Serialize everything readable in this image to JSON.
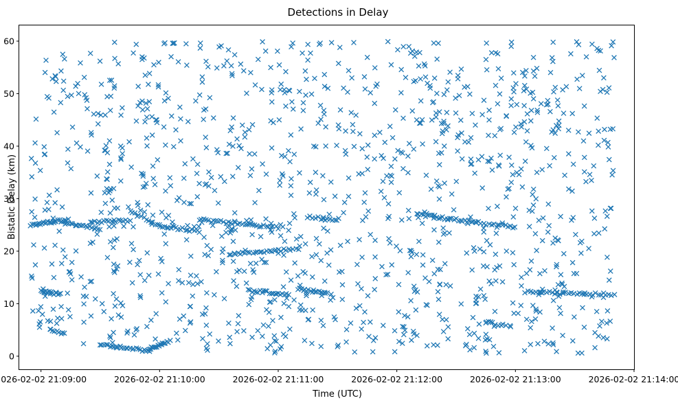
{
  "chart_data": {
    "type": "scatter",
    "title": "Detections in Delay",
    "xlabel": "Time (UTC)",
    "ylabel": "Bistatic Delay (km)",
    "marker": "x",
    "marker_color": "#1f77b4",
    "grid": false,
    "legend": "none",
    "xlim": [
      "2026-02-02 21:08:49",
      "2026-02-02 21:14:00"
    ],
    "ylim": [
      -2.5,
      63
    ],
    "xticks": [
      "2026-02-02 21:09:00",
      "2026-02-02 21:10:00",
      "2026-02-02 21:11:00",
      "2026-02-02 21:12:00",
      "2026-02-02 21:13:00",
      "2026-02-02 21:14:00"
    ],
    "yticks": [
      "0",
      "10",
      "20",
      "30",
      "40",
      "50",
      "60"
    ],
    "x_start": "2026-02-02 21:08:55",
    "x_end": "2026-02-02 21:13:50",
    "random_y_range": [
      0.5,
      60
    ],
    "tracks": [
      {
        "x": [
          "2026-02-02 21:08:55",
          "2026-02-02 21:09:10"
        ],
        "y": [
          25,
          25.8
        ],
        "n": 22
      },
      {
        "x": [
          "2026-02-02 21:09:10",
          "2026-02-02 21:09:30"
        ],
        "y": [
          25.5,
          24.3
        ],
        "n": 20
      },
      {
        "x": [
          "2026-02-02 21:09:25",
          "2026-02-02 21:09:45"
        ],
        "y": [
          25.5,
          25.8
        ],
        "n": 18
      },
      {
        "x": [
          "2026-02-02 21:09:45",
          "2026-02-02 21:10:00"
        ],
        "y": [
          27.5,
          24.8
        ],
        "n": 14
      },
      {
        "x": [
          "2026-02-02 21:10:00",
          "2026-02-02 21:10:20"
        ],
        "y": [
          24.8,
          23.8
        ],
        "n": 18
      },
      {
        "x": [
          "2026-02-02 21:10:20",
          "2026-02-02 21:11:00"
        ],
        "y": [
          26,
          24.5
        ],
        "n": 34
      },
      {
        "x": [
          "2026-02-02 21:11:15",
          "2026-02-02 21:11:30"
        ],
        "y": [
          26.5,
          26
        ],
        "n": 12
      },
      {
        "x": [
          "2026-02-02 21:12:10",
          "2026-02-02 21:12:40"
        ],
        "y": [
          27,
          25.5
        ],
        "n": 28
      },
      {
        "x": [
          "2026-02-02 21:12:40",
          "2026-02-02 21:13:00"
        ],
        "y": [
          25.5,
          24.5
        ],
        "n": 16
      },
      {
        "x": [
          "2026-02-02 21:09:00",
          "2026-02-02 21:09:10"
        ],
        "y": [
          12.3,
          11.8
        ],
        "n": 16
      },
      {
        "x": [
          "2026-02-02 21:10:45",
          "2026-02-02 21:11:05"
        ],
        "y": [
          12.5,
          11.8
        ],
        "n": 22
      },
      {
        "x": [
          "2026-02-02 21:11:10",
          "2026-02-02 21:11:25"
        ],
        "y": [
          12.8,
          12
        ],
        "n": 18
      },
      {
        "x": [
          "2026-02-02 21:13:05",
          "2026-02-02 21:13:50"
        ],
        "y": [
          12.2,
          11.8
        ],
        "n": 34
      },
      {
        "x": [
          "2026-02-02 21:10:35",
          "2026-02-02 21:11:10"
        ],
        "y": [
          19.3,
          20.5
        ],
        "n": 30
      },
      {
        "x": [
          "2026-02-02 21:09:30",
          "2026-02-02 21:09:55"
        ],
        "y": [
          2.2,
          1.0
        ],
        "n": 26
      },
      {
        "x": [
          "2026-02-02 21:09:55",
          "2026-02-02 21:10:05"
        ],
        "y": [
          1.2,
          2.8
        ],
        "n": 16
      },
      {
        "x": [
          "2026-02-02 21:09:05",
          "2026-02-02 21:09:12"
        ],
        "y": [
          5,
          4.2
        ],
        "n": 8
      },
      {
        "x": [
          "2026-02-02 21:12:45",
          "2026-02-02 21:12:55"
        ],
        "y": [
          6.5,
          5.8
        ],
        "n": 9
      }
    ],
    "random_count": 1250,
    "seed": 20260202
  }
}
